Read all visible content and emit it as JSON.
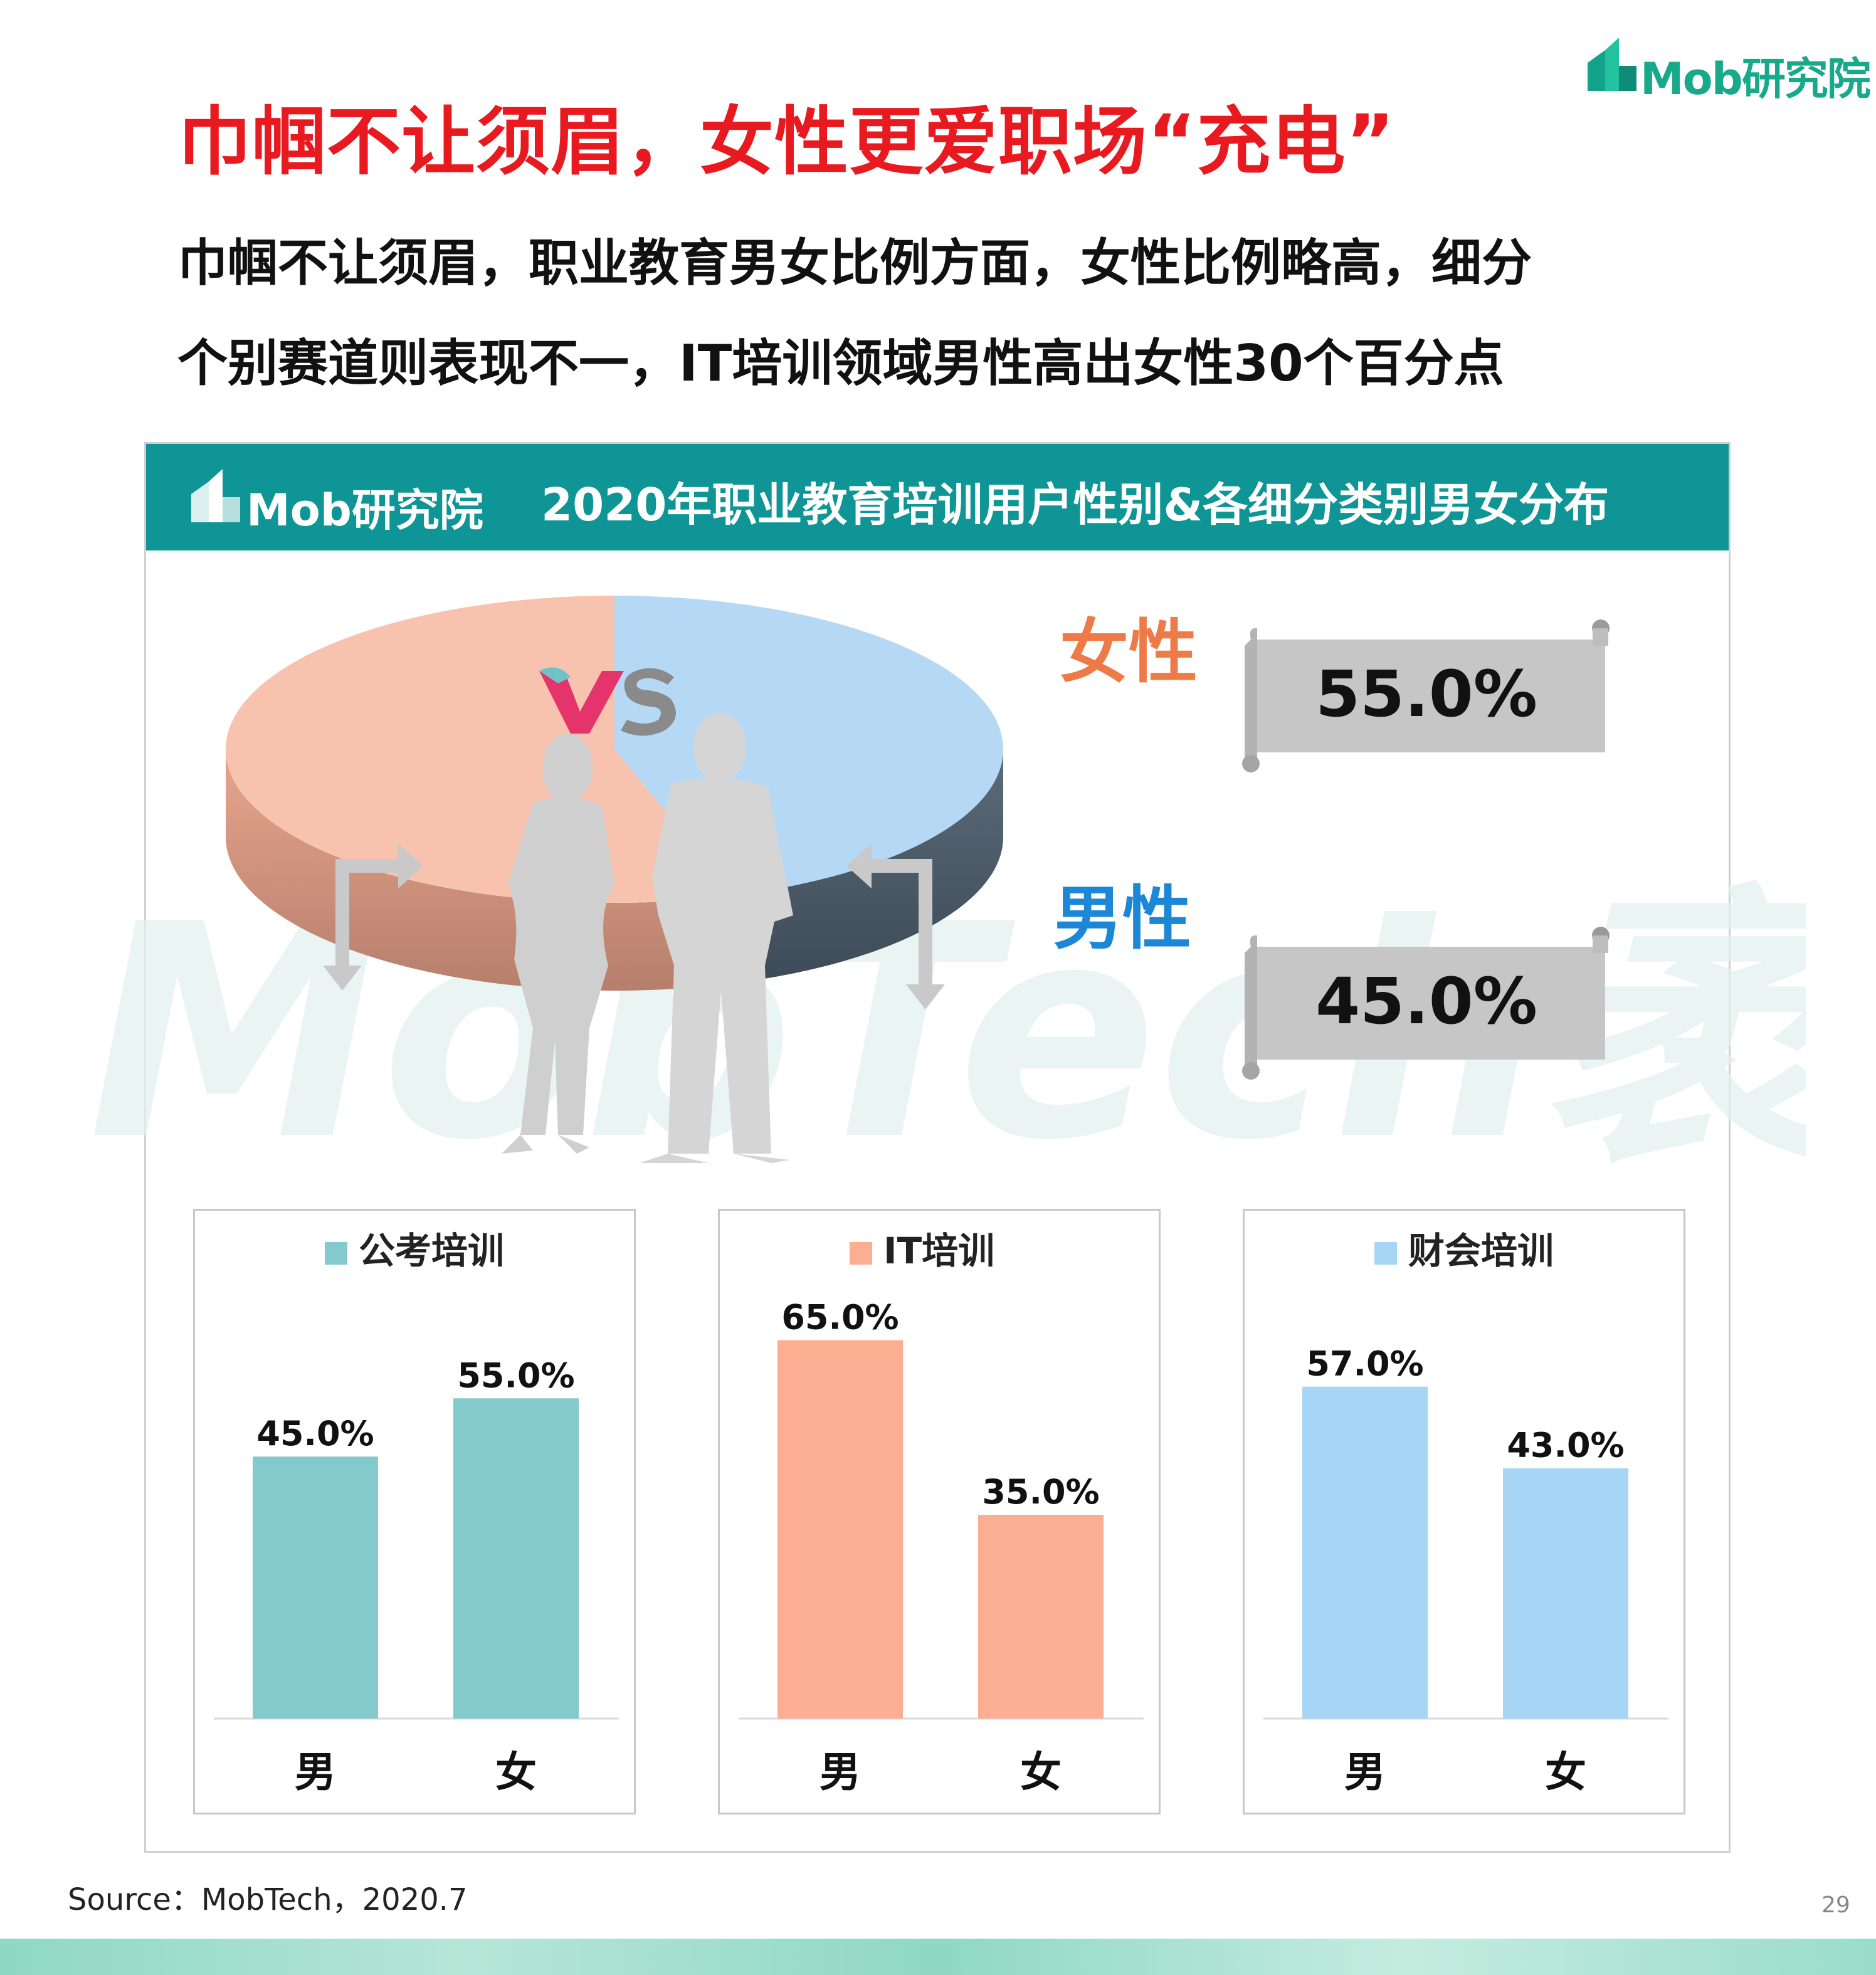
{
  "brand": {
    "logo_text": "Mob研究院",
    "colors": {
      "teal": "#0f9595",
      "logo_green": "#18a98b",
      "red": "#e8191f",
      "female": "#ee7b47",
      "male": "#1b87d6"
    }
  },
  "header": {
    "title": "巾帼不让须眉，女性更爱职场“充电”",
    "subtitle_line1": "巾帼不让须眉，职业教育男女比例方面，女性比例略高，细分",
    "subtitle_line2": "个别赛道则表现不一，IT培训领域男性高出女性30个百分点"
  },
  "panel": {
    "logo_text": "Mob研究院",
    "title": "2020年职业教育培训用户性别&各细分类别男女分布",
    "vs_icon": "vs-icon",
    "watermark": "MobTech袤博"
  },
  "chart_data": [
    {
      "type": "pie",
      "labels": [
        "女性",
        "男性"
      ],
      "values": [
        55.0,
        45.0
      ],
      "display_values": [
        "55.0%",
        "45.0%"
      ],
      "colors": [
        "#f8c3ae",
        "#b5d9f5"
      ]
    },
    {
      "type": "bar",
      "title": "公考培训",
      "categories": [
        "男",
        "女"
      ],
      "values": [
        45.0,
        55.0
      ],
      "data_labels": [
        "45.0%",
        "55.0%"
      ],
      "color": "#84c9cc",
      "ylim": [
        0,
        70
      ]
    },
    {
      "type": "bar",
      "title": "IT培训",
      "categories": [
        "男",
        "女"
      ],
      "values": [
        65.0,
        35.0
      ],
      "data_labels": [
        "65.0%",
        "35.0%"
      ],
      "color": "#fbae91",
      "ylim": [
        0,
        70
      ]
    },
    {
      "type": "bar",
      "title": "财会培训",
      "categories": [
        "男",
        "女"
      ],
      "values": [
        57.0,
        43.0
      ],
      "data_labels": [
        "57.0%",
        "43.0%"
      ],
      "color": "#a7d5f6",
      "ylim": [
        0,
        70
      ]
    }
  ],
  "footer": {
    "source": "Source：MobTech，2020.7",
    "page_number": "29"
  }
}
